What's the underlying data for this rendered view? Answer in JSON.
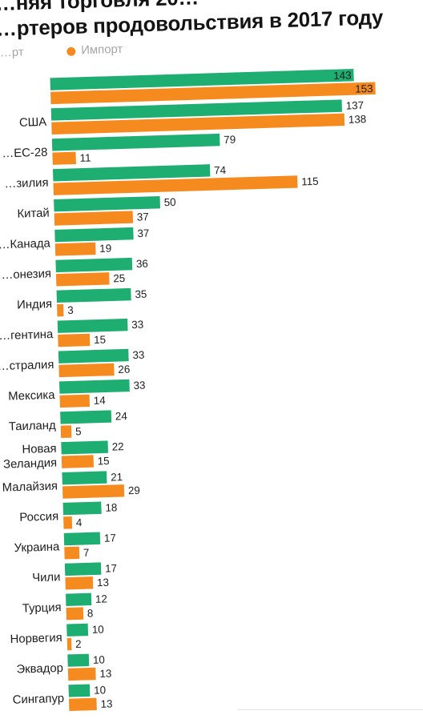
{
  "header": {
    "title_line1": "…няя торговля 20…",
    "title_line2": "…ртеров продовольствия в 2017 году"
  },
  "legend": {
    "export_label": "…рт",
    "import_label": "Импорт"
  },
  "colors": {
    "export": "#1fae72",
    "import": "#f58b1f",
    "text": "#1d1d1d"
  },
  "chart_data": {
    "type": "bar",
    "orientation": "horizontal",
    "title": "…няя торговля 20… …ртеров продовольствия в 2017 году",
    "categories": [
      "",
      "США",
      "…ЕС-28",
      "…зилия",
      "Китай",
      "…Канада",
      "…онезия",
      "Индия",
      "…гентина",
      "…стралия",
      "Мексика",
      "Таиланд",
      "Новая Зеландия",
      "Малайзия",
      "Россия",
      "Украина",
      "Чили",
      "Турция",
      "Норвегия",
      "Эквадор",
      "Сингапур"
    ],
    "category_lines": [
      [
        ""
      ],
      [
        "США"
      ],
      [
        "…ЕС-28"
      ],
      [
        "…зилия"
      ],
      [
        "Китай"
      ],
      [
        "…Канада"
      ],
      [
        "…онезия"
      ],
      [
        "Индия"
      ],
      [
        "…гентина"
      ],
      [
        "…стралия"
      ],
      [
        "Мексика"
      ],
      [
        "Таиланд"
      ],
      [
        "Новая",
        "Зеландия"
      ],
      [
        "Малайзия"
      ],
      [
        "Россия"
      ],
      [
        "Украина"
      ],
      [
        "Чили"
      ],
      [
        "Турция"
      ],
      [
        "Норвегия"
      ],
      [
        "Эквадор"
      ],
      [
        "Сингапур"
      ]
    ],
    "series": [
      {
        "name": "…рт",
        "values": [
          143,
          137,
          79,
          74,
          50,
          37,
          36,
          35,
          33,
          33,
          33,
          24,
          22,
          21,
          18,
          17,
          17,
          12,
          10,
          10,
          10
        ]
      },
      {
        "name": "Импорт",
        "values": [
          153,
          138,
          11,
          115,
          37,
          19,
          25,
          3,
          15,
          26,
          14,
          5,
          15,
          29,
          4,
          7,
          13,
          8,
          2,
          13,
          13
        ]
      }
    ],
    "xlim": [
      0,
      153
    ],
    "grid": false,
    "legend_position": "top-left"
  }
}
